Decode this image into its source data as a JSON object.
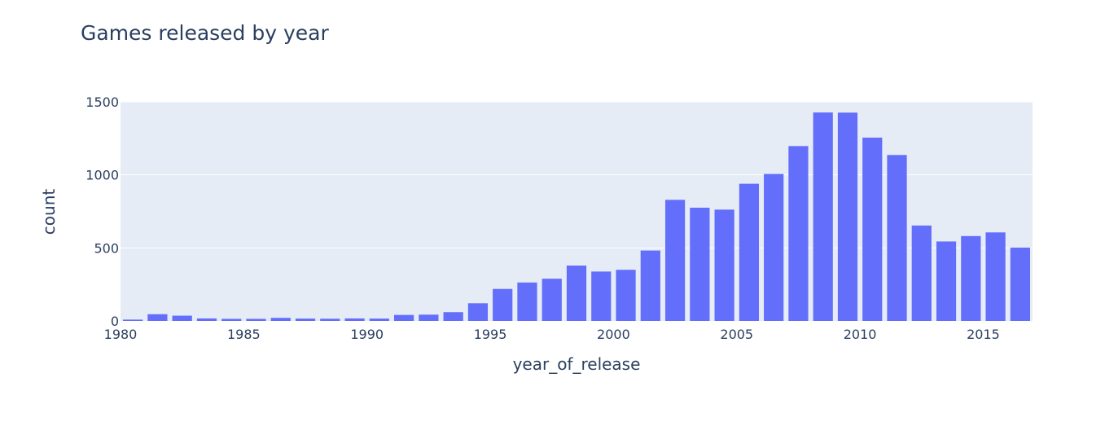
{
  "chart_data": {
    "type": "bar",
    "title": "Games released by year",
    "xlabel": "year_of_release",
    "ylabel": "count",
    "xlim": [
      1980,
      2016
    ],
    "ylim": [
      0,
      1500
    ],
    "x_ticks": [
      "1980",
      "1985",
      "1990",
      "1995",
      "2000",
      "2005",
      "2010",
      "2015"
    ],
    "x_tick_values": [
      1980,
      1985,
      1990,
      1995,
      2000,
      2005,
      2010,
      2015
    ],
    "y_ticks": [
      "0",
      "500",
      "1000",
      "1500"
    ],
    "y_tick_values": [
      0,
      500,
      1000,
      1500
    ],
    "grid": true,
    "bar_color": "#636efa",
    "plot_bg": "#e5ecf6",
    "text_color": "#2a3f5f",
    "series": [
      {
        "x": [
          1980,
          1981,
          1982,
          1983,
          1984,
          1985,
          1986,
          1987,
          1988,
          1989,
          1990,
          1991,
          1992,
          1993,
          1994,
          1995,
          1996,
          1997,
          1998,
          1999,
          2000,
          2001,
          2002,
          2003,
          2004,
          2005,
          2006,
          2007,
          2008,
          2009,
          2010,
          2011,
          2012,
          2013,
          2014,
          2015,
          2016
        ],
        "values": [
          9,
          46,
          36,
          17,
          14,
          14,
          21,
          16,
          15,
          17,
          16,
          41,
          43,
          60,
          121,
          219,
          263,
          289,
          379,
          338,
          350,
          482,
          829,
          775,
          762,
          939,
          1006,
          1197,
          1427,
          1426,
          1255,
          1136,
          653,
          544,
          581,
          606,
          502
        ]
      }
    ]
  }
}
